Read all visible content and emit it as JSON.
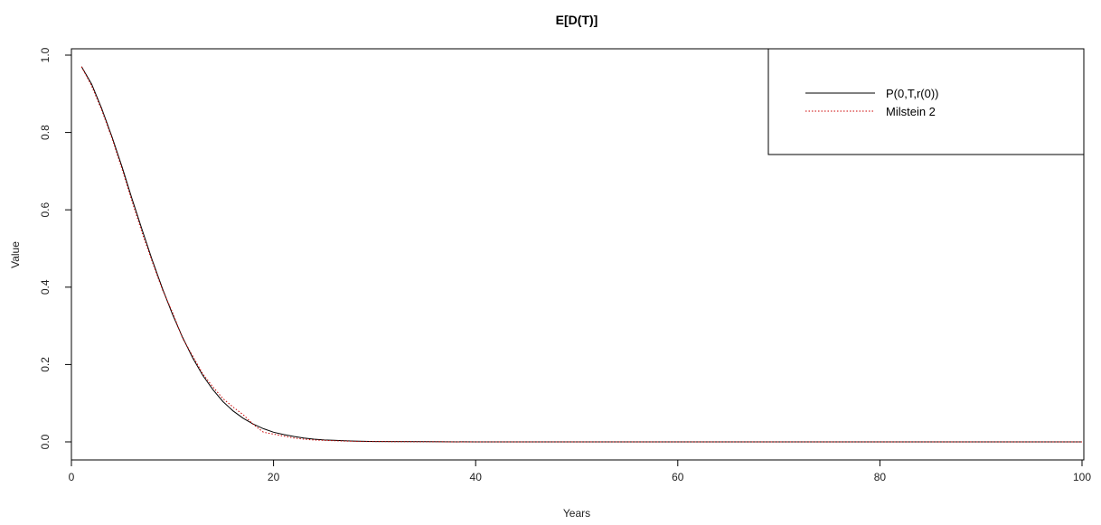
{
  "chart_data": {
    "type": "line",
    "title": "E[D(T)]",
    "xlabel": "Years",
    "ylabel": "Value",
    "xlim": [
      0,
      100
    ],
    "ylim": [
      0,
      1
    ],
    "xticks": [
      "0",
      "20",
      "40",
      "60",
      "80",
      "100"
    ],
    "yticks": [
      "0.0",
      "0.2",
      "0.4",
      "0.6",
      "0.8",
      "1.0"
    ],
    "grid": false,
    "legend_position": "top-right",
    "series": [
      {
        "name": "P(0,T,r(0))",
        "color": "#000000",
        "style": "solid",
        "x": [
          1,
          2,
          3,
          4,
          5,
          6,
          7,
          8,
          9,
          10,
          11,
          12,
          13,
          14,
          15,
          16,
          17,
          18,
          19,
          20,
          21,
          22,
          23,
          24,
          25,
          26,
          27,
          28,
          29,
          30,
          35,
          40,
          50,
          60,
          70,
          80,
          90,
          100
        ],
        "values": [
          0.97,
          0.925,
          0.862,
          0.79,
          0.712,
          0.628,
          0.548,
          0.47,
          0.397,
          0.33,
          0.27,
          0.217,
          0.172,
          0.135,
          0.104,
          0.08,
          0.061,
          0.046,
          0.034,
          0.025,
          0.019,
          0.014,
          0.01,
          0.007,
          0.005,
          0.004,
          0.003,
          0.002,
          0.0015,
          0.001,
          0.0004,
          0.0001,
          0,
          0,
          0,
          0,
          0,
          0
        ]
      },
      {
        "name": "Milstein 2",
        "color": "#cc0000",
        "style": "dotted",
        "x": [
          1,
          2,
          3,
          4,
          5,
          6,
          7,
          8,
          9,
          10,
          11,
          12,
          13,
          14,
          15,
          16,
          17,
          18,
          19,
          20,
          21,
          22,
          23,
          24,
          25,
          26,
          27,
          28,
          29,
          30,
          35,
          40,
          50,
          60,
          70,
          80,
          90,
          100
        ],
        "values": [
          0.97,
          0.92,
          0.858,
          0.786,
          0.706,
          0.622,
          0.54,
          0.466,
          0.394,
          0.335,
          0.268,
          0.222,
          0.176,
          0.142,
          0.112,
          0.09,
          0.07,
          0.045,
          0.025,
          0.02,
          0.015,
          0.01,
          0.007,
          0.005,
          0.004,
          0.003,
          0.002,
          0.0015,
          0.001,
          0.001,
          0.0003,
          0,
          0,
          0,
          0,
          0,
          0,
          0
        ]
      }
    ]
  }
}
